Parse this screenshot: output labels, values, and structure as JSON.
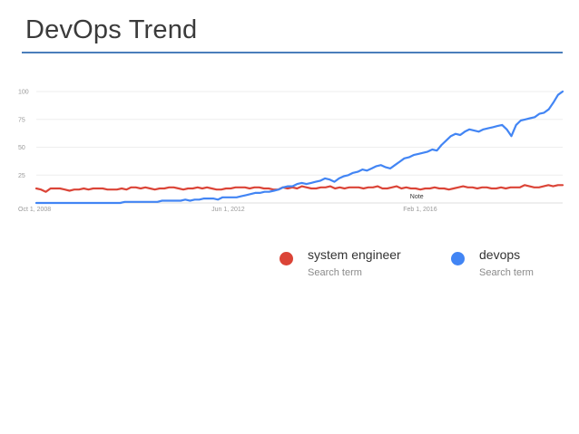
{
  "slide": {
    "title": "DevOps Trend"
  },
  "colors": {
    "title_rule": "#4a7ebb",
    "gridline": "#eeeeee",
    "axis_tick_text": "#999999"
  },
  "chart_data": {
    "type": "line",
    "title": "",
    "xlabel": "",
    "ylabel": "",
    "ylim": [
      0,
      100
    ],
    "yticks": [
      100,
      75,
      50,
      25
    ],
    "grid": true,
    "legend_position": "bottom-right",
    "x_range": [
      0,
      1
    ],
    "x_tick_labels": [
      {
        "label": "Oct 1, 2008",
        "x": 0.0
      },
      {
        "label": "Jun 1, 2012",
        "x": 0.364
      },
      {
        "label": "Feb 1, 2016",
        "x": 0.728
      }
    ],
    "annotations": [
      {
        "label": "Note",
        "x": 0.71
      }
    ],
    "series": [
      {
        "name": "system engineer",
        "subtitle": "Search term",
        "color": "#db4437",
        "values": [
          13,
          12,
          10,
          13,
          13,
          13,
          12,
          11,
          12,
          12,
          13,
          12,
          13,
          13,
          13,
          12,
          12,
          12,
          13,
          12,
          14,
          14,
          13,
          14,
          13,
          12,
          13,
          13,
          14,
          14,
          13,
          12,
          13,
          13,
          14,
          13,
          14,
          13,
          12,
          12,
          13,
          13,
          14,
          14,
          14,
          13,
          14,
          14,
          13,
          13,
          12,
          12,
          14,
          13,
          14,
          13,
          15,
          14,
          13,
          13,
          14,
          14,
          15,
          13,
          14,
          13,
          14,
          14,
          14,
          13,
          14,
          14,
          15,
          13,
          13,
          14,
          15,
          13,
          14,
          13,
          13,
          12,
          13,
          13,
          14,
          13,
          13,
          12,
          13,
          14,
          15,
          14,
          14,
          13,
          14,
          14,
          13,
          13,
          14,
          13,
          14,
          14,
          14,
          16,
          15,
          14,
          14,
          15,
          16,
          15,
          16,
          16
        ]
      },
      {
        "name": "devops",
        "subtitle": "Search term",
        "color": "#4285f4",
        "values": [
          0,
          0,
          0,
          0,
          0,
          0,
          0,
          0,
          0,
          0,
          0,
          0,
          0,
          0,
          0,
          0,
          0,
          0,
          0,
          1,
          1,
          1,
          1,
          1,
          1,
          1,
          1,
          2,
          2,
          2,
          2,
          2,
          3,
          2,
          3,
          3,
          4,
          4,
          4,
          3,
          5,
          5,
          5,
          5,
          6,
          7,
          8,
          9,
          9,
          10,
          10,
          11,
          12,
          14,
          15,
          15,
          17,
          18,
          17,
          18,
          19,
          20,
          22,
          21,
          19,
          22,
          24,
          25,
          27,
          28,
          30,
          29,
          31,
          33,
          34,
          32,
          31,
          34,
          37,
          40,
          41,
          43,
          44,
          45,
          46,
          48,
          47,
          52,
          56,
          60,
          62,
          61,
          64,
          66,
          65,
          64,
          66,
          67,
          68,
          69,
          70,
          66,
          60,
          70,
          74,
          75,
          76,
          77,
          80,
          81,
          84,
          90,
          97,
          100
        ]
      }
    ]
  }
}
